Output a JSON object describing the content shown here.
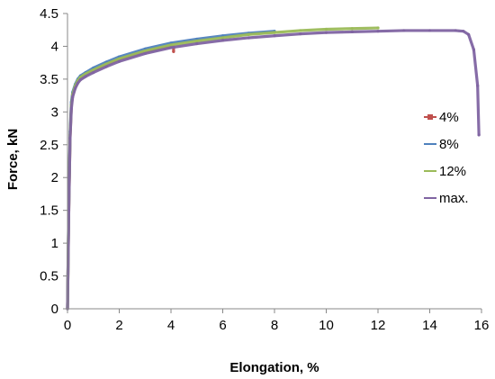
{
  "chart_data": {
    "type": "line",
    "title": "",
    "xlabel": "Elongation, %",
    "ylabel": "Force, kN",
    "xlim": [
      0,
      16
    ],
    "ylim": [
      0,
      4.5
    ],
    "xticks": [
      "0",
      "2",
      "4",
      "6",
      "8",
      "10",
      "12",
      "14",
      "16"
    ],
    "yticks": [
      "0",
      "0.5",
      "1",
      "1.5",
      "2",
      "2.5",
      "3",
      "3.5",
      "4",
      "4.5"
    ],
    "grid": false,
    "legend_position": "right",
    "series": [
      {
        "name": "4%",
        "color": "#c0504d",
        "marker": "square",
        "x": [
          0,
          0.05,
          0.1,
          0.15,
          0.2,
          0.3,
          0.4,
          0.5,
          0.7,
          1.0,
          1.5,
          2.0,
          2.5,
          3.0,
          3.5,
          4.0,
          4.1,
          4.1
        ],
        "y": [
          0,
          1.5,
          2.6,
          3.1,
          3.25,
          3.38,
          3.45,
          3.5,
          3.56,
          3.63,
          3.72,
          3.8,
          3.86,
          3.91,
          3.96,
          4.0,
          4.0,
          3.92
        ]
      },
      {
        "name": "8%",
        "color": "#4f81bd",
        "marker": "line",
        "x": [
          0,
          0.05,
          0.1,
          0.15,
          0.2,
          0.3,
          0.4,
          0.5,
          0.7,
          1.0,
          1.5,
          2.0,
          3.0,
          4.0,
          5.0,
          6.0,
          7.0,
          8.0
        ],
        "y": [
          0,
          1.6,
          2.7,
          3.15,
          3.3,
          3.42,
          3.5,
          3.55,
          3.6,
          3.67,
          3.76,
          3.84,
          3.96,
          4.05,
          4.11,
          4.16,
          4.2,
          4.23
        ]
      },
      {
        "name": "12%",
        "color": "#9bbb59",
        "marker": "line",
        "x": [
          0,
          0.05,
          0.1,
          0.15,
          0.2,
          0.3,
          0.4,
          0.5,
          0.7,
          1.0,
          1.5,
          2.0,
          3.0,
          4.0,
          5.0,
          6.0,
          7.0,
          8.0,
          9.0,
          10.0,
          11.0,
          12.0
        ],
        "y": [
          0,
          1.55,
          2.65,
          3.1,
          3.27,
          3.4,
          3.48,
          3.53,
          3.58,
          3.64,
          3.73,
          3.81,
          3.93,
          4.02,
          4.08,
          4.13,
          4.18,
          4.21,
          4.24,
          4.26,
          4.27,
          4.28
        ]
      },
      {
        "name": "max.",
        "color": "#8064a2",
        "marker": "line",
        "x": [
          0,
          0.05,
          0.1,
          0.15,
          0.2,
          0.3,
          0.4,
          0.5,
          0.7,
          1.0,
          1.5,
          2.0,
          3.0,
          4.0,
          5.0,
          6.0,
          7.0,
          8.0,
          9.0,
          10.0,
          11.0,
          12.0,
          13.0,
          14.0,
          15.0,
          15.3,
          15.5,
          15.7,
          15.85,
          15.9
        ],
        "y": [
          0,
          1.5,
          2.6,
          3.05,
          3.23,
          3.36,
          3.44,
          3.49,
          3.54,
          3.6,
          3.69,
          3.77,
          3.89,
          3.98,
          4.04,
          4.09,
          4.13,
          4.16,
          4.19,
          4.21,
          4.22,
          4.23,
          4.24,
          4.24,
          4.24,
          4.23,
          4.18,
          3.95,
          3.4,
          2.65
        ]
      }
    ]
  }
}
